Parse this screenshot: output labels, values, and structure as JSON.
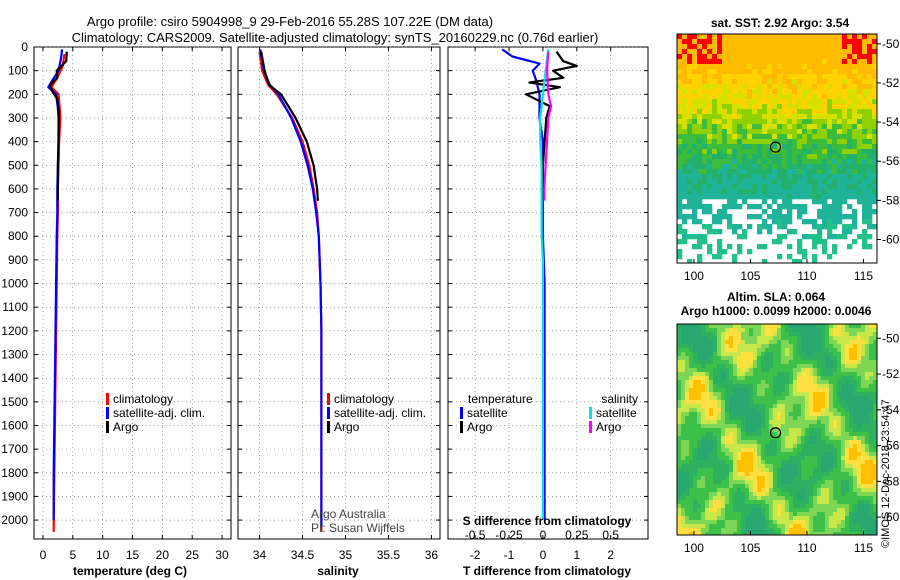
{
  "title_line1": "Argo profile: csiro 5904998_9 29-Feb-2016 55.28S 107.22E (DM data)",
  "title_line2": "Climatology: CARS2009. Satellite-adjusted climatology: synTS_20160229.nc (0.76d earlier)",
  "credit": "Argo Australia",
  "pi": "PI: Susan Wijffels",
  "stamp": "©IMOS 12-Dec-2018 23:54:47",
  "colors": {
    "climatology": "#ff0000",
    "satellite": "#0000ff",
    "argo": "#000000",
    "sat_salinity": "#00e5e5",
    "argo_salinity": "#ff00ff"
  },
  "chart_data": [
    {
      "type": "line",
      "name": "temperature",
      "xlabel": "temperature (deg C)",
      "xlim": [
        -1.5,
        31.5
      ],
      "xticks": [
        0,
        5,
        10,
        15,
        20,
        25,
        30
      ],
      "ylim": [
        0,
        2080
      ],
      "yticks": [
        0,
        100,
        200,
        300,
        400,
        500,
        600,
        700,
        800,
        900,
        1000,
        1100,
        1200,
        1300,
        1400,
        1500,
        1600,
        1700,
        1800,
        1900,
        2000
      ],
      "legend": [
        "climatology",
        "satellite-adj. clim.",
        "Argo"
      ],
      "series": [
        {
          "name": "climatology",
          "color": "#ff0000",
          "y": [
            30,
            80,
            130,
            170,
            200,
            260,
            300,
            400,
            500,
            600,
            700,
            800,
            1000,
            1200,
            1400,
            1600,
            1800,
            2000,
            2050
          ],
          "x": [
            3.6,
            3.3,
            2.4,
            1.4,
            2.6,
            2.8,
            2.9,
            2.7,
            2.6,
            2.5,
            2.5,
            2.4,
            2.3,
            2.2,
            2.1,
            2.0,
            1.9,
            1.8,
            1.8
          ]
        },
        {
          "name": "satellite-adj. clim.",
          "color": "#0000ff",
          "y": [
            10,
            50,
            100,
            140,
            170,
            200,
            260,
            300,
            400,
            500,
            600,
            700,
            800,
            1000,
            1200,
            1400,
            1600,
            1800,
            2000
          ],
          "x": [
            3.2,
            3.0,
            2.6,
            1.6,
            0.9,
            2.2,
            2.5,
            2.6,
            2.6,
            2.5,
            2.4,
            2.4,
            2.3,
            2.2,
            2.1,
            2.0,
            1.9,
            1.8,
            1.8
          ]
        },
        {
          "name": "Argo",
          "color": "#000000",
          "y": [
            20,
            60,
            100,
            130,
            160,
            190,
            220,
            260,
            300,
            400,
            500,
            600,
            650
          ],
          "x": [
            4.0,
            3.9,
            2.3,
            2.4,
            1.2,
            1.6,
            2.4,
            2.6,
            2.7,
            2.6,
            2.5,
            2.5,
            2.5
          ]
        }
      ]
    },
    {
      "type": "line",
      "name": "salinity",
      "xlabel": "salinity",
      "xlim": [
        33.75,
        36.1
      ],
      "xticks": [
        34,
        34.5,
        35,
        35.5,
        36
      ],
      "ylim": [
        0,
        2080
      ],
      "legend": [
        "climatology",
        "satellite-adj. clim.",
        "Argo"
      ],
      "series": [
        {
          "name": "climatology",
          "color": "#ff0000",
          "y": [
            20,
            100,
            160,
            200,
            300,
            400,
            500,
            600,
            700,
            800,
            1000,
            1200,
            1500,
            1800,
            2050
          ],
          "x": [
            34.0,
            34.03,
            34.1,
            34.2,
            34.38,
            34.5,
            34.58,
            34.63,
            34.67,
            34.69,
            34.71,
            34.72,
            34.72,
            34.72,
            34.72
          ]
        },
        {
          "name": "satellite-adj. clim.",
          "color": "#0000ff",
          "y": [
            10,
            100,
            160,
            200,
            300,
            400,
            500,
            600,
            700,
            800,
            1000,
            1200,
            1500,
            1800,
            2030
          ],
          "x": [
            34.01,
            34.05,
            34.12,
            34.22,
            34.37,
            34.48,
            34.56,
            34.62,
            34.66,
            34.69,
            34.71,
            34.72,
            34.72,
            34.72,
            34.72
          ]
        },
        {
          "name": "Argo",
          "color": "#000000",
          "y": [
            20,
            100,
            160,
            200,
            300,
            400,
            500,
            600,
            650
          ],
          "x": [
            34.02,
            34.06,
            34.11,
            34.25,
            34.42,
            34.55,
            34.63,
            34.67,
            34.68
          ]
        }
      ]
    },
    {
      "type": "line",
      "name": "difference",
      "xlabel": "T difference from climatology",
      "xlabel_top": "S difference from climatology",
      "xlim": [
        -2.8,
        3.1
      ],
      "xticks": [
        -2,
        -1,
        0,
        1,
        2
      ],
      "xlim_s": [
        -0.7,
        0.775
      ],
      "xticks_s": [
        -0.5,
        -0.25,
        0,
        0.25,
        0.5
      ],
      "ylim": [
        0,
        2080
      ],
      "legend": {
        "temperature_header": "temperature",
        "salinity_header": "salinity",
        "satellite": "satellite",
        "argo": "Argo"
      },
      "series": [
        {
          "name": "T satellite",
          "color": "#0000ff",
          "axis": "T",
          "y": [
            10,
            40,
            70,
            100,
            140,
            200,
            300,
            400,
            600,
            800,
            1000,
            1200,
            1500,
            1800,
            2000
          ],
          "x": [
            -1.2,
            -0.9,
            -0.1,
            -0.3,
            -0.2,
            -0.1,
            -0.1,
            0.0,
            0.0,
            0.0,
            0.05,
            0.05,
            0.05,
            0.05,
            0.05
          ]
        },
        {
          "name": "T Argo",
          "color": "#000000",
          "axis": "T",
          "y": [
            20,
            60,
            80,
            100,
            130,
            150,
            170,
            200,
            250,
            300,
            400,
            500,
            600,
            650
          ],
          "x": [
            0.4,
            0.6,
            1.0,
            0.3,
            0.6,
            -0.4,
            0.5,
            -0.5,
            0.2,
            0.1,
            0.05,
            0.0,
            0.0,
            0.0
          ]
        },
        {
          "name": "S satellite",
          "color": "#00e5e5",
          "axis": "S",
          "y": [
            10,
            100,
            200,
            300,
            400,
            500,
            600,
            700,
            800,
            900,
            1000,
            1200,
            1500,
            1800,
            2000
          ],
          "x": [
            0.04,
            0.02,
            0.0,
            -0.02,
            -0.02,
            -0.01,
            -0.01,
            -0.01,
            -0.01,
            0.0,
            0.0,
            0.0,
            0.0,
            0.0,
            0.0
          ]
        },
        {
          "name": "S Argo",
          "color": "#ff00ff",
          "axis": "S",
          "y": [
            20,
            100,
            200,
            250,
            300,
            400,
            500,
            600,
            650
          ],
          "x": [
            0.04,
            0.03,
            0.04,
            0.06,
            0.04,
            0.03,
            0.02,
            0.01,
            0.01
          ]
        }
      ]
    },
    {
      "type": "heatmap",
      "name": "sst_map",
      "title": "sat. SST: 2.92 Argo: 3.54",
      "xlim": [
        98.5,
        116.2
      ],
      "ylim": [
        -61.2,
        -49.5
      ],
      "xticks": [
        100,
        105,
        110,
        115
      ],
      "yticks": [
        -50,
        -52,
        -54,
        -56,
        -58,
        -60
      ],
      "marker": {
        "lon": 107.22,
        "lat": -55.28
      }
    },
    {
      "type": "heatmap",
      "name": "sla_map",
      "title": "Altim. SLA: 0.064",
      "subtitle": "Argo h1000: 0.0099 h2000: 0.0046",
      "xlim": [
        98.5,
        116.2
      ],
      "ylim": [
        -61.0,
        -49.2
      ],
      "xticks": [
        100,
        105,
        110,
        115
      ],
      "yticks": [
        -50,
        -52,
        -54,
        -56,
        -58,
        -60
      ],
      "marker": {
        "lon": 107.22,
        "lat": -55.28
      }
    }
  ]
}
